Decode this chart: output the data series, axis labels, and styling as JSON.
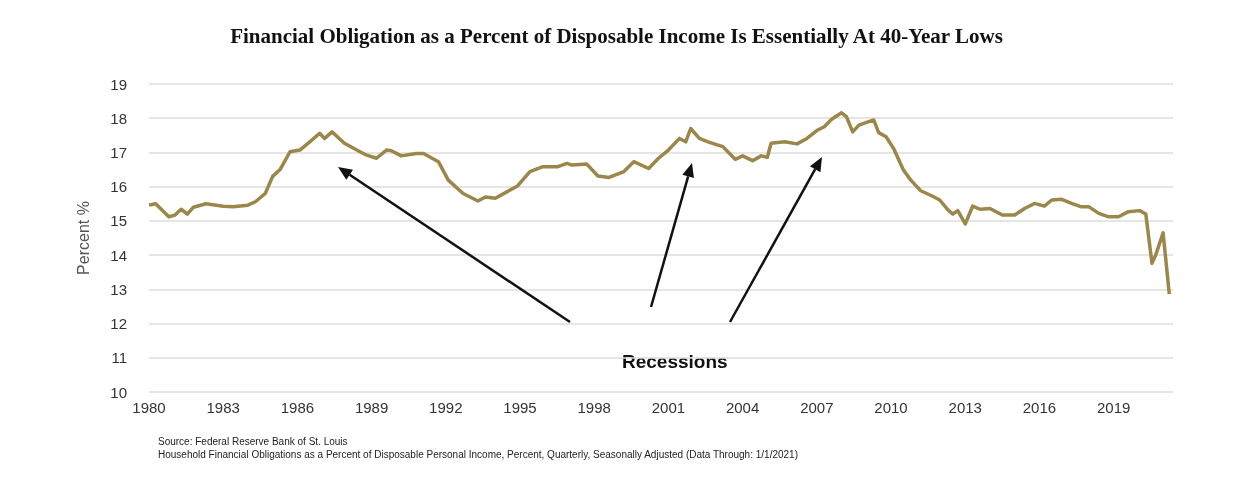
{
  "chart_data": {
    "type": "line",
    "title": "Financial Obligation as a Percent of Disposable Income Is Essentially At 40-Year Lows",
    "ylabel": "Percent %",
    "annotations": [
      "Recessions",
      "Source: Federal Reserve Bank of St. Louis",
      "Household Financial Obligations as a Percent of Disposable Personal Income, Percent, Quarterly, Seasonally Adjusted (Data Through: 1/1/2021)"
    ],
    "xlim": [
      1980,
      2021.4
    ],
    "xticks": [
      1980,
      1983,
      1986,
      1989,
      1992,
      1995,
      1998,
      2001,
      2004,
      2007,
      2010,
      2013,
      2016,
      2019
    ],
    "ylim": [
      10,
      19
    ],
    "yticks": [
      10,
      11,
      12,
      13,
      14,
      15,
      16,
      17,
      18,
      19
    ],
    "grid": "y",
    "marker": "none",
    "line_style": "solid",
    "series": [
      {
        "color": "#9a8749",
        "x": [
          1980,
          1980.27,
          1980.8,
          1981.05,
          1981.3,
          1981.55,
          1981.8,
          1982.3,
          1983,
          1983.4,
          1984,
          1984.3,
          1984.7,
          1985,
          1985.3,
          1985.7,
          1986.1,
          1986.5,
          1986.9,
          1987.1,
          1987.4,
          1987.9,
          1988.4,
          1988.8,
          1989.2,
          1989.6,
          1989.8,
          1990.2,
          1990.8,
          1991.1,
          1991.7,
          1992.1,
          1992.7,
          1993.3,
          1993.6,
          1994,
          1994.6,
          1994.9,
          1995.4,
          1995.9,
          1996.5,
          1996.9,
          1997.1,
          1997.7,
          1998.15,
          1998.6,
          1999.2,
          1999.6,
          2000.2,
          2000.6,
          2001,
          2001.45,
          2001.7,
          2001.9,
          2002.25,
          2002.6,
          2003.2,
          2003.7,
          2004,
          2004.4,
          2004.75,
          2005,
          2005.15,
          2005.7,
          2006.2,
          2006.6,
          2007,
          2007.3,
          2007.6,
          2008,
          2008.2,
          2008.45,
          2008.7,
          2009.3,
          2009.5,
          2009.8,
          2010.1,
          2010.5,
          2010.8,
          2011.2,
          2011.6,
          2011.97,
          2012.3,
          2012.5,
          2012.7,
          2013,
          2013.3,
          2013.6,
          2014,
          2014.5,
          2015,
          2015.4,
          2015.8,
          2016.2,
          2016.5,
          2016.9,
          2017.3,
          2017.7,
          2018,
          2018.4,
          2018.8,
          2019.2,
          2019.6,
          2020.05,
          2020.3,
          2020.55,
          2020.7,
          2021,
          2021.25
        ],
        "values": [
          15.46,
          15.5,
          15.12,
          15.17,
          15.34,
          15.2,
          15.4,
          15.5,
          15.43,
          15.41,
          15.46,
          15.56,
          15.8,
          16.3,
          16.5,
          17.02,
          17.07,
          17.31,
          17.56,
          17.41,
          17.6,
          17.27,
          17.07,
          16.92,
          16.83,
          17.07,
          17.05,
          16.9,
          16.97,
          16.97,
          16.73,
          16.19,
          15.8,
          15.58,
          15.7,
          15.66,
          15.9,
          16.02,
          16.44,
          16.58,
          16.58,
          16.68,
          16.63,
          16.66,
          16.31,
          16.27,
          16.44,
          16.73,
          16.53,
          16.83,
          17.07,
          17.41,
          17.31,
          17.7,
          17.41,
          17.31,
          17.17,
          16.8,
          16.9,
          16.76,
          16.9,
          16.86,
          17.27,
          17.31,
          17.25,
          17.41,
          17.64,
          17.75,
          17.97,
          18.16,
          18.04,
          17.6,
          17.8,
          17.95,
          17.58,
          17.46,
          17.12,
          16.49,
          16.19,
          15.88,
          15.75,
          15.61,
          15.32,
          15.2,
          15.3,
          14.91,
          15.43,
          15.34,
          15.36,
          15.17,
          15.17,
          15.36,
          15.51,
          15.43,
          15.61,
          15.63,
          15.51,
          15.41,
          15.41,
          15.22,
          15.12,
          15.12,
          15.27,
          15.3,
          15.2,
          13.76,
          14.0,
          14.65,
          12.86
        ]
      }
    ]
  }
}
